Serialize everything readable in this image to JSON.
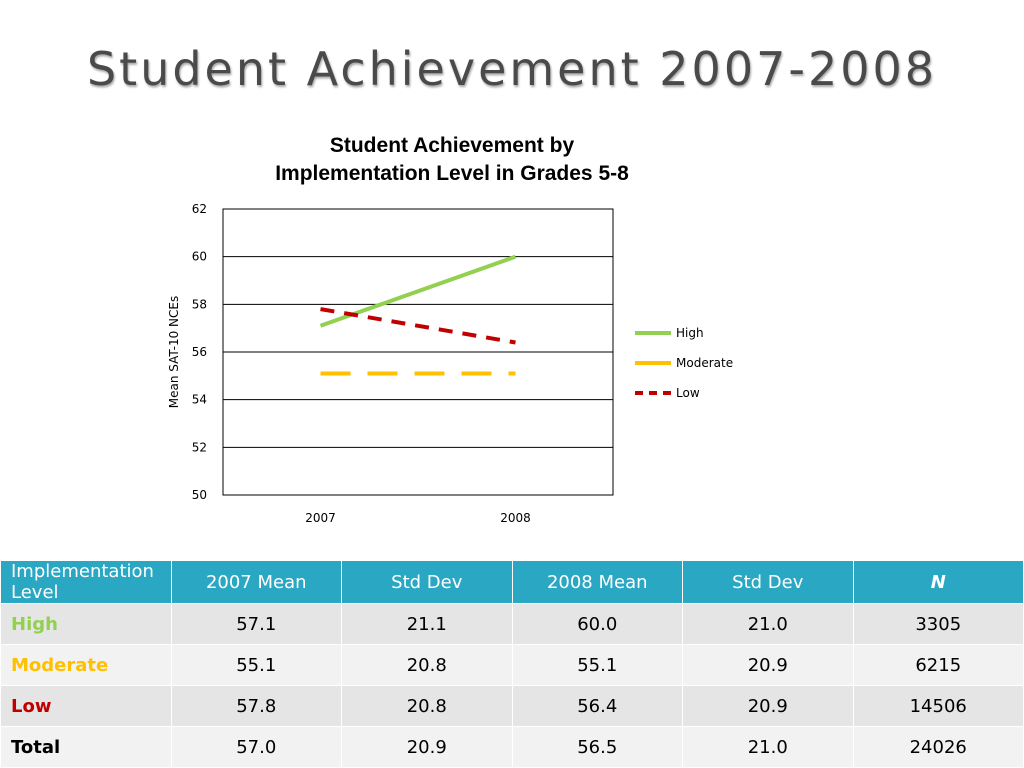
{
  "slide": {
    "title": "Student Achievement 2007-2008"
  },
  "chart_data": {
    "type": "line",
    "title_lines": [
      "Student Achievement by",
      "Implementation Level in Grades 5-8"
    ],
    "ylabel": "Mean SAT-10 NCEs",
    "xlabel": "",
    "categories": [
      "2007",
      "2008"
    ],
    "ylim": [
      50,
      62
    ],
    "yticks": [
      "50",
      "52",
      "54",
      "56",
      "58",
      "60",
      "62"
    ],
    "grid": true,
    "legend_position": "right",
    "series": [
      {
        "name": "High",
        "values": [
          57.1,
          60.0
        ],
        "color": "#92d050",
        "dash": "solid"
      },
      {
        "name": "Moderate",
        "values": [
          55.1,
          55.1
        ],
        "color": "#ffc000",
        "dash": "dash"
      },
      {
        "name": "Low",
        "values": [
          57.8,
          56.4
        ],
        "color": "#c00000",
        "dash": "dash"
      }
    ]
  },
  "table": {
    "headers": [
      "Implementation Level",
      "2007 Mean",
      "Std Dev",
      "2008 Mean",
      "Std Dev",
      "N"
    ],
    "rows": [
      {
        "level": "High",
        "color": "#92d050",
        "mean2007": "57.1",
        "sd2007": "21.1",
        "mean2008": "60.0",
        "sd2008": "21.0",
        "n": "3305"
      },
      {
        "level": "Moderate",
        "color": "#ffc000",
        "mean2007": "55.1",
        "sd2007": "20.8",
        "mean2008": "55.1",
        "sd2008": "20.9",
        "n": "6215"
      },
      {
        "level": "Low",
        "color": "#c00000",
        "mean2007": "57.8",
        "sd2007": "20.8",
        "mean2008": "56.4",
        "sd2008": "20.9",
        "n": "14506"
      },
      {
        "level": "Total",
        "color": "#000000",
        "mean2007": "57.0",
        "sd2007": "20.9",
        "mean2008": "56.5",
        "sd2008": "21.0",
        "n": "24026"
      }
    ]
  }
}
